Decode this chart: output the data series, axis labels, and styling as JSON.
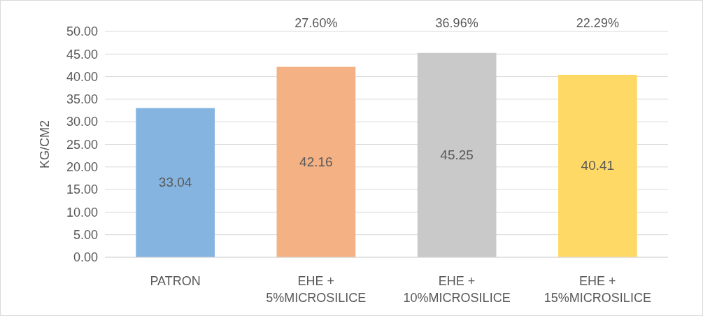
{
  "chart_data": {
    "type": "bar",
    "ylabel": "KG/CM2",
    "categories": [
      "PATRON",
      "EHE + 5%MICROSILICE",
      "EHE + 10%MICROSILICE",
      "EHE + 15%MICROSILICE"
    ],
    "values": [
      33.04,
      42.16,
      45.25,
      40.41
    ],
    "colors": [
      "#86b4e0",
      "#f4b183",
      "#c9c9c9",
      "#ffd966"
    ],
    "ylim": [
      0,
      50
    ],
    "yticks": [
      {
        "value": 0,
        "label": "0.00"
      },
      {
        "value": 5,
        "label": "5.00"
      },
      {
        "value": 10,
        "label": "10.00"
      },
      {
        "value": 15,
        "label": "15.00"
      },
      {
        "value": 20,
        "label": "20.00"
      },
      {
        "value": 25,
        "label": "25.00"
      },
      {
        "value": 30,
        "label": "30.00"
      },
      {
        "value": 35,
        "label": "35.00"
      },
      {
        "value": 40,
        "label": "40.00"
      },
      {
        "value": 45,
        "label": "45.00"
      },
      {
        "value": 50,
        "label": "50.00"
      }
    ],
    "grid": true,
    "data_labels": true,
    "annotations": [
      "27.60%",
      "36.96%",
      "22.29%"
    ]
  }
}
